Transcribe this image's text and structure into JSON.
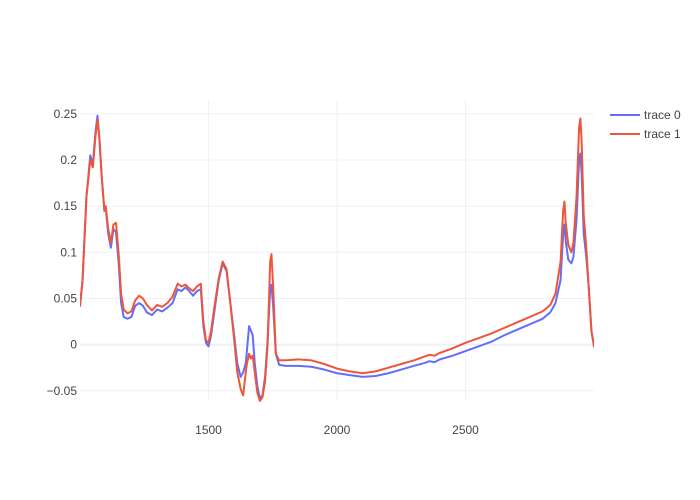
{
  "chart_data": {
    "type": "line",
    "title": "",
    "xlabel": "",
    "ylabel": "",
    "xlim": [
      1000,
      3000
    ],
    "ylim": [
      -0.06,
      0.265
    ],
    "x_ticks": [
      1500,
      2000,
      2500
    ],
    "y_ticks": [
      -0.05,
      0,
      0.05,
      0.1,
      0.15,
      0.2,
      0.25
    ],
    "y_tick_labels": [
      "−0.05",
      "0",
      "0.05",
      "0.1",
      "0.15",
      "0.2",
      "0.25"
    ],
    "grid": true,
    "legend_position": "top-right",
    "series": [
      {
        "name": "trace 0",
        "color": "#636efa",
        "points": [
          [
            1000,
            0.042
          ],
          [
            1010,
            0.07
          ],
          [
            1025,
            0.16
          ],
          [
            1040,
            0.205
          ],
          [
            1050,
            0.195
          ],
          [
            1060,
            0.23
          ],
          [
            1068,
            0.248
          ],
          [
            1075,
            0.225
          ],
          [
            1085,
            0.18
          ],
          [
            1095,
            0.145
          ],
          [
            1100,
            0.148
          ],
          [
            1110,
            0.12
          ],
          [
            1120,
            0.105
          ],
          [
            1130,
            0.125
          ],
          [
            1140,
            0.122
          ],
          [
            1150,
            0.09
          ],
          [
            1160,
            0.045
          ],
          [
            1170,
            0.03
          ],
          [
            1185,
            0.028
          ],
          [
            1200,
            0.03
          ],
          [
            1215,
            0.042
          ],
          [
            1230,
            0.045
          ],
          [
            1245,
            0.042
          ],
          [
            1260,
            0.035
          ],
          [
            1280,
            0.032
          ],
          [
            1300,
            0.038
          ],
          [
            1320,
            0.036
          ],
          [
            1340,
            0.04
          ],
          [
            1360,
            0.045
          ],
          [
            1380,
            0.06
          ],
          [
            1395,
            0.058
          ],
          [
            1410,
            0.062
          ],
          [
            1425,
            0.058
          ],
          [
            1440,
            0.053
          ],
          [
            1455,
            0.058
          ],
          [
            1470,
            0.06
          ],
          [
            1480,
            0.02
          ],
          [
            1490,
            0.002
          ],
          [
            1500,
            -0.002
          ],
          [
            1510,
            0.01
          ],
          [
            1525,
            0.04
          ],
          [
            1540,
            0.07
          ],
          [
            1555,
            0.088
          ],
          [
            1570,
            0.08
          ],
          [
            1585,
            0.045
          ],
          [
            1600,
            0.01
          ],
          [
            1612,
            -0.02
          ],
          [
            1625,
            -0.035
          ],
          [
            1635,
            -0.03
          ],
          [
            1645,
            -0.02
          ],
          [
            1650,
            -0.005
          ],
          [
            1658,
            0.02
          ],
          [
            1665,
            0.015
          ],
          [
            1672,
            0.01
          ],
          [
            1680,
            -0.02
          ],
          [
            1690,
            -0.045
          ],
          [
            1700,
            -0.058
          ],
          [
            1710,
            -0.055
          ],
          [
            1720,
            -0.035
          ],
          [
            1730,
            0.005
          ],
          [
            1740,
            0.06
          ],
          [
            1745,
            0.065
          ],
          [
            1752,
            0.04
          ],
          [
            1762,
            -0.01
          ],
          [
            1775,
            -0.022
          ],
          [
            1800,
            -0.023
          ],
          [
            1850,
            -0.023
          ],
          [
            1900,
            -0.024
          ],
          [
            1950,
            -0.027
          ],
          [
            2000,
            -0.031
          ],
          [
            2050,
            -0.033
          ],
          [
            2100,
            -0.035
          ],
          [
            2150,
            -0.034
          ],
          [
            2200,
            -0.031
          ],
          [
            2250,
            -0.027
          ],
          [
            2300,
            -0.023
          ],
          [
            2340,
            -0.02
          ],
          [
            2360,
            -0.018
          ],
          [
            2380,
            -0.019
          ],
          [
            2400,
            -0.016
          ],
          [
            2450,
            -0.012
          ],
          [
            2500,
            -0.007
          ],
          [
            2550,
            -0.002
          ],
          [
            2600,
            0.003
          ],
          [
            2650,
            0.01
          ],
          [
            2700,
            0.016
          ],
          [
            2750,
            0.022
          ],
          [
            2800,
            0.028
          ],
          [
            2830,
            0.035
          ],
          [
            2850,
            0.045
          ],
          [
            2870,
            0.07
          ],
          [
            2880,
            0.12
          ],
          [
            2885,
            0.13
          ],
          [
            2890,
            0.112
          ],
          [
            2900,
            0.092
          ],
          [
            2912,
            0.088
          ],
          [
            2920,
            0.095
          ],
          [
            2932,
            0.135
          ],
          [
            2942,
            0.2
          ],
          [
            2947,
            0.207
          ],
          [
            2952,
            0.185
          ],
          [
            2960,
            0.12
          ],
          [
            2970,
            0.095
          ],
          [
            2980,
            0.06
          ],
          [
            2990,
            0.015
          ],
          [
            3000,
            -0.002
          ]
        ]
      },
      {
        "name": "trace 1",
        "color": "#ef553b",
        "points": [
          [
            1000,
            0.042
          ],
          [
            1010,
            0.07
          ],
          [
            1025,
            0.16
          ],
          [
            1040,
            0.2
          ],
          [
            1050,
            0.192
          ],
          [
            1060,
            0.225
          ],
          [
            1068,
            0.244
          ],
          [
            1075,
            0.225
          ],
          [
            1085,
            0.18
          ],
          [
            1095,
            0.145
          ],
          [
            1100,
            0.15
          ],
          [
            1110,
            0.125
          ],
          [
            1120,
            0.11
          ],
          [
            1130,
            0.13
          ],
          [
            1140,
            0.132
          ],
          [
            1150,
            0.1
          ],
          [
            1160,
            0.055
          ],
          [
            1170,
            0.038
          ],
          [
            1185,
            0.034
          ],
          [
            1200,
            0.036
          ],
          [
            1215,
            0.048
          ],
          [
            1230,
            0.053
          ],
          [
            1245,
            0.05
          ],
          [
            1260,
            0.043
          ],
          [
            1280,
            0.037
          ],
          [
            1300,
            0.043
          ],
          [
            1320,
            0.041
          ],
          [
            1340,
            0.045
          ],
          [
            1360,
            0.052
          ],
          [
            1380,
            0.066
          ],
          [
            1395,
            0.063
          ],
          [
            1410,
            0.065
          ],
          [
            1425,
            0.061
          ],
          [
            1440,
            0.058
          ],
          [
            1455,
            0.063
          ],
          [
            1470,
            0.066
          ],
          [
            1480,
            0.025
          ],
          [
            1490,
            0.005
          ],
          [
            1500,
            0.002
          ],
          [
            1510,
            0.015
          ],
          [
            1525,
            0.045
          ],
          [
            1540,
            0.072
          ],
          [
            1555,
            0.09
          ],
          [
            1570,
            0.082
          ],
          [
            1585,
            0.045
          ],
          [
            1600,
            0.005
          ],
          [
            1612,
            -0.03
          ],
          [
            1625,
            -0.048
          ],
          [
            1635,
            -0.055
          ],
          [
            1645,
            -0.03
          ],
          [
            1650,
            -0.02
          ],
          [
            1658,
            -0.01
          ],
          [
            1665,
            -0.015
          ],
          [
            1672,
            -0.012
          ],
          [
            1680,
            -0.03
          ],
          [
            1690,
            -0.052
          ],
          [
            1700,
            -0.061
          ],
          [
            1710,
            -0.057
          ],
          [
            1720,
            -0.04
          ],
          [
            1730,
            0.0
          ],
          [
            1740,
            0.09
          ],
          [
            1745,
            0.098
          ],
          [
            1752,
            0.06
          ],
          [
            1762,
            -0.01
          ],
          [
            1775,
            -0.017
          ],
          [
            1800,
            -0.017
          ],
          [
            1850,
            -0.016
          ],
          [
            1900,
            -0.017
          ],
          [
            1950,
            -0.021
          ],
          [
            2000,
            -0.026
          ],
          [
            2050,
            -0.029
          ],
          [
            2100,
            -0.031
          ],
          [
            2150,
            -0.029
          ],
          [
            2200,
            -0.025
          ],
          [
            2250,
            -0.021
          ],
          [
            2300,
            -0.017
          ],
          [
            2340,
            -0.013
          ],
          [
            2360,
            -0.011
          ],
          [
            2380,
            -0.012
          ],
          [
            2400,
            -0.009
          ],
          [
            2450,
            -0.004
          ],
          [
            2500,
            0.002
          ],
          [
            2550,
            0.007
          ],
          [
            2600,
            0.012
          ],
          [
            2650,
            0.018
          ],
          [
            2700,
            0.024
          ],
          [
            2750,
            0.03
          ],
          [
            2800,
            0.036
          ],
          [
            2830,
            0.043
          ],
          [
            2850,
            0.055
          ],
          [
            2870,
            0.09
          ],
          [
            2880,
            0.145
          ],
          [
            2885,
            0.155
          ],
          [
            2890,
            0.132
          ],
          [
            2900,
            0.108
          ],
          [
            2912,
            0.1
          ],
          [
            2920,
            0.11
          ],
          [
            2932,
            0.16
          ],
          [
            2942,
            0.235
          ],
          [
            2947,
            0.245
          ],
          [
            2952,
            0.22
          ],
          [
            2960,
            0.14
          ],
          [
            2970,
            0.105
          ],
          [
            2980,
            0.06
          ],
          [
            2990,
            0.015
          ],
          [
            3000,
            -0.002
          ]
        ]
      }
    ]
  }
}
